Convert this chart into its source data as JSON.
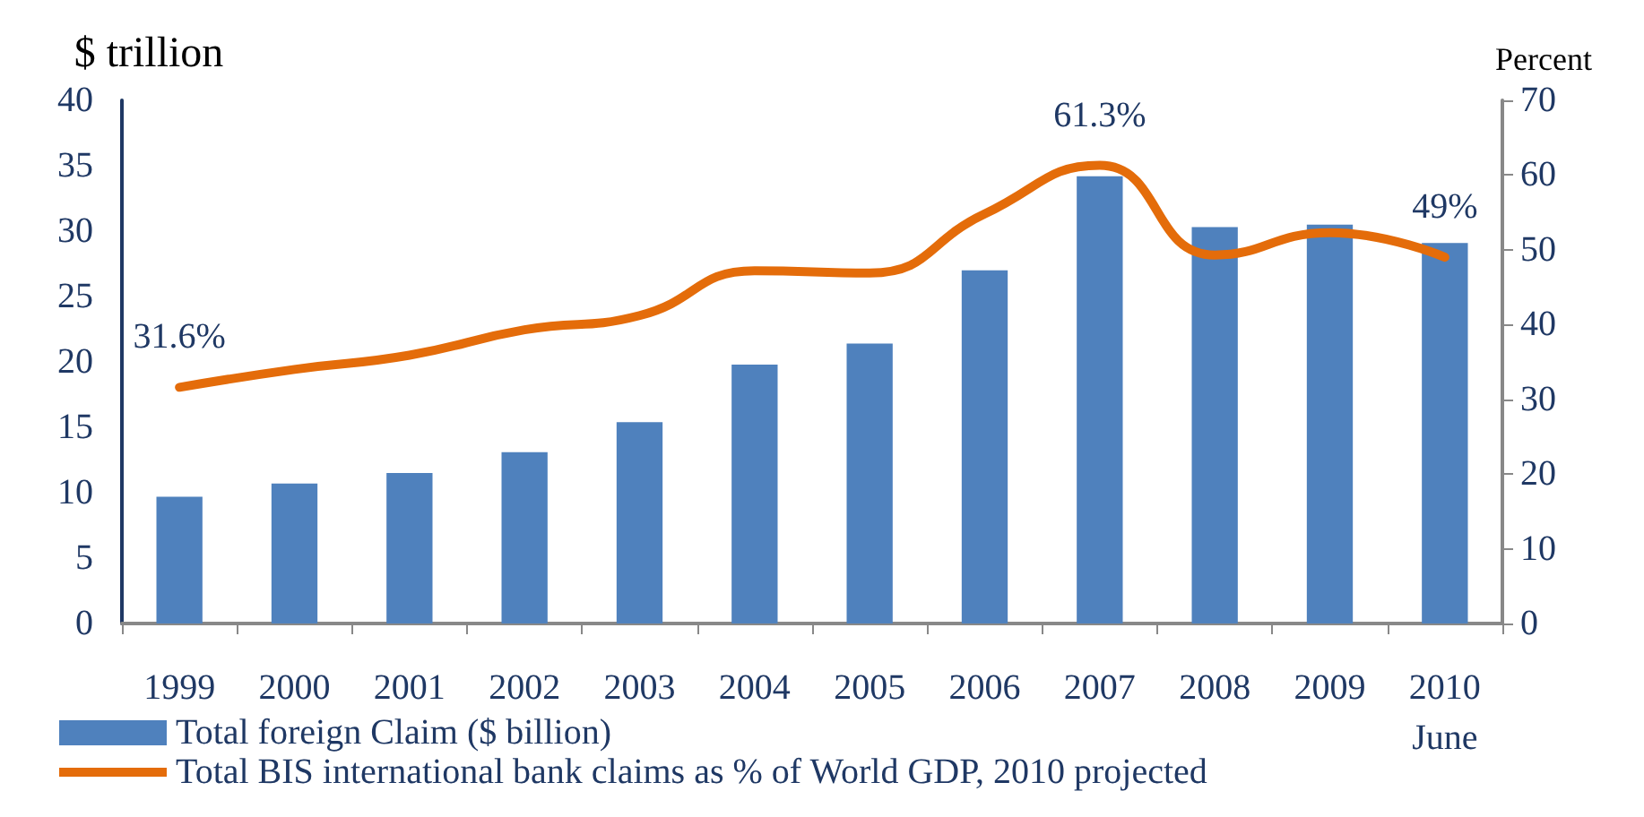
{
  "chart_data": {
    "type": "bar",
    "ylabel": "$ trillion",
    "y2label": "Percent",
    "categories": [
      "1999",
      "2000",
      "2001",
      "2002",
      "2003",
      "2004",
      "2005",
      "2006",
      "2007",
      "2008",
      "2009",
      "2010\nJune"
    ],
    "series": [
      {
        "name": "Total foreign Claim ($ billion)",
        "color": "#4f81bd",
        "values": [
          9.7,
          10.7,
          11.5,
          13.1,
          15.4,
          19.8,
          21.4,
          27.0,
          34.2,
          30.3,
          30.5,
          29.1
        ]
      },
      {
        "name": "Total BIS international bank claims as % of World GDP, 2010 projected",
        "type": "line",
        "axis": "y2",
        "color": "#e46c0a",
        "values": [
          31.6,
          34.0,
          35.9,
          39.3,
          41.2,
          47.2,
          46.9,
          54.8,
          61.3,
          49.3,
          52.3,
          49
        ],
        "value_labels": [
          "31.6%",
          null,
          null,
          null,
          null,
          null,
          null,
          null,
          "61.3%",
          null,
          null,
          "49%"
        ]
      }
    ],
    "ylim": [
      0,
      40
    ],
    "yticks": [
      0,
      5,
      10,
      15,
      20,
      25,
      30,
      35,
      40
    ],
    "y2lim": [
      0,
      70
    ],
    "y2ticks": [
      0,
      10,
      20,
      30,
      40,
      50,
      60,
      70
    ],
    "grid": false,
    "legend": "bottom left",
    "marker": "none",
    "line_style": "solid"
  }
}
